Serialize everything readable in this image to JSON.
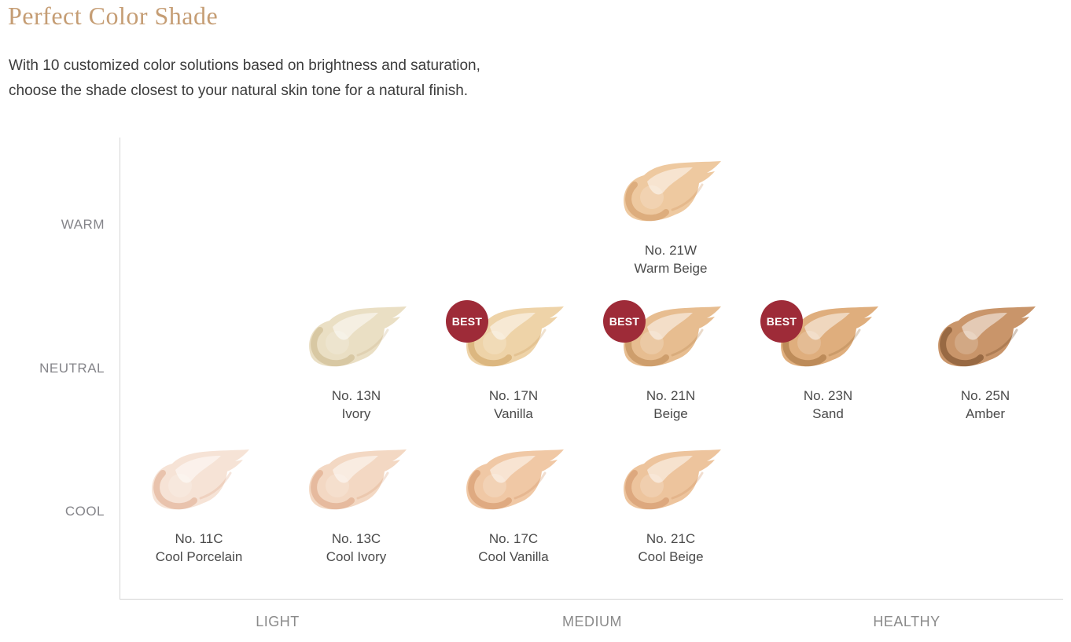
{
  "page": {
    "title": "Perfect Color Shade",
    "subtitle_line1": "With 10 customized color solutions based on brightness and saturation,",
    "subtitle_line2": "choose the shade closest to your natural skin tone for a natural finish."
  },
  "chart_data": {
    "type": "scatter",
    "title": "Perfect Color Shade",
    "x_axis_categories": [
      "LIGHT",
      "MEDIUM",
      "HEALTHY"
    ],
    "y_axis_categories": [
      "WARM",
      "NEUTRAL",
      "COOL"
    ],
    "grid": false,
    "best_badge_label": "BEST",
    "best_badge_color": "#9e2b38",
    "shades": [
      {
        "no": "No. 21W",
        "name": "Warm Beige",
        "tone": "WARM",
        "brightness_col": 4,
        "best": false,
        "color": "#eec9a0",
        "shade_color": "#cf9660"
      },
      {
        "no": "No. 13N",
        "name": "Ivory",
        "tone": "NEUTRAL",
        "brightness_col": 2,
        "best": false,
        "color": "#eadfc4",
        "shade_color": "#c9b489"
      },
      {
        "no": "No. 17N",
        "name": "Vanilla",
        "tone": "NEUTRAL",
        "brightness_col": 3,
        "best": true,
        "color": "#eed3a8",
        "shade_color": "#cda05f"
      },
      {
        "no": "No. 21N",
        "name": "Beige",
        "tone": "NEUTRAL",
        "brightness_col": 4,
        "best": true,
        "color": "#e7bd90",
        "shade_color": "#b9854e"
      },
      {
        "no": "No. 23N",
        "name": "Sand",
        "tone": "NEUTRAL",
        "brightness_col": 5,
        "best": true,
        "color": "#dfae7d",
        "shade_color": "#a06f3c"
      },
      {
        "no": "No. 25N",
        "name": "Amber",
        "tone": "NEUTRAL",
        "brightness_col": 6,
        "best": false,
        "color": "#c9956a",
        "shade_color": "#6f4522"
      },
      {
        "no": "No. 11C",
        "name": "Cool Porcelain",
        "tone": "COOL",
        "brightness_col": 1,
        "best": false,
        "color": "#f6e3d6",
        "shade_color": "#dfa98c"
      },
      {
        "no": "No. 13C",
        "name": "Cool Ivory",
        "tone": "COOL",
        "brightness_col": 2,
        "best": false,
        "color": "#f3d8c3",
        "shade_color": "#dba37f"
      },
      {
        "no": "No. 17C",
        "name": "Cool Vanilla",
        "tone": "COOL",
        "brightness_col": 3,
        "best": false,
        "color": "#f0c8a5",
        "shade_color": "#d29264"
      },
      {
        "no": "No. 21C",
        "name": "Cool Beige",
        "tone": "COOL",
        "brightness_col": 4,
        "best": false,
        "color": "#edc49d",
        "shade_color": "#cf9265"
      }
    ]
  }
}
